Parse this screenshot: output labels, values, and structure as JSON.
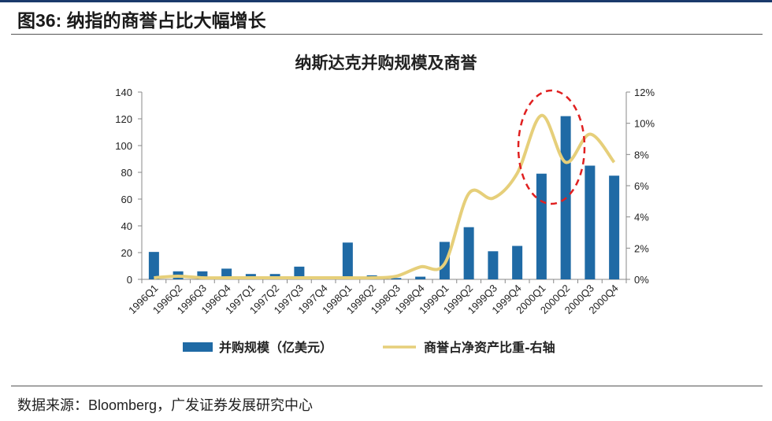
{
  "figure": {
    "label": "图36:",
    "title": "纳指的商誉占比大幅增长"
  },
  "source": "数据来源：Bloomberg，广发证券发展研究中心",
  "colors": {
    "bar": "#1f6aa5",
    "line": "#e6cf7a",
    "annotation": "#e02020",
    "header_rule": "#1a3a6b"
  },
  "chart_data": {
    "type": "bar",
    "title": "纳斯达克并购规模及商誉",
    "categories": [
      "1996Q1",
      "1996Q2",
      "1996Q3",
      "1996Q4",
      "1997Q1",
      "1997Q2",
      "1997Q3",
      "1997Q4",
      "1998Q1",
      "1998Q2",
      "1998Q3",
      "1998Q4",
      "1999Q1",
      "1999Q2",
      "1999Q3",
      "1999Q4",
      "2000Q1",
      "2000Q2",
      "2000Q3",
      "2000Q4"
    ],
    "series": [
      {
        "name": "并购规模（亿美元）",
        "type": "bar",
        "axis": "left",
        "values": [
          20.5,
          6,
          6,
          8,
          4,
          4,
          9.5,
          0,
          27.5,
          3,
          1,
          2,
          28,
          39,
          21,
          25,
          79,
          122,
          85,
          77.5
        ]
      },
      {
        "name": "商誉占净资产比重-右轴",
        "type": "line",
        "axis": "right",
        "values": [
          0.1,
          0.2,
          0.1,
          0.1,
          0.1,
          0.1,
          0.1,
          0.1,
          0.1,
          0.1,
          0.2,
          0.8,
          1.0,
          5.5,
          5.2,
          6.8,
          10.5,
          7.5,
          9.3,
          7.5
        ]
      }
    ],
    "y_left": {
      "range": [
        0,
        140
      ],
      "ticks": [
        "0",
        "20",
        "40",
        "60",
        "80",
        "100",
        "120",
        "140"
      ]
    },
    "y_right": {
      "range": [
        0,
        12
      ],
      "ticks": [
        "0%",
        "2%",
        "4%",
        "6%",
        "8%",
        "10%",
        "12%"
      ]
    },
    "legend_position": "bottom",
    "annotation": "red dashed ellipse highlighting 2000Q1–2000Q2 peak"
  }
}
